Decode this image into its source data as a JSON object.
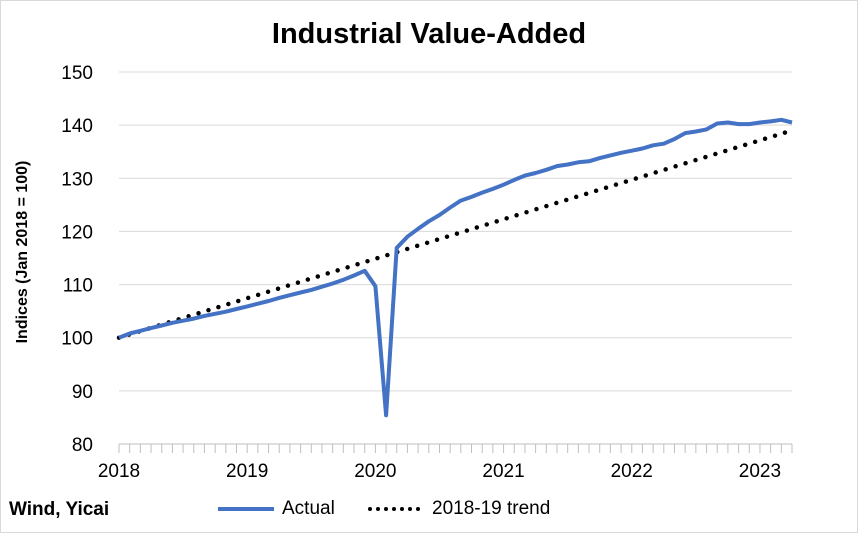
{
  "chart_data": {
    "type": "line",
    "title": "Industrial Value-Added",
    "ylabel": "Indices (Jan 2018 = 100)",
    "xlabel": "",
    "ylim": [
      80,
      150
    ],
    "yticks": [
      "80",
      "90",
      "100",
      "110",
      "120",
      "130",
      "140",
      "150"
    ],
    "xticks": [
      "2018",
      "2019",
      "2020",
      "2021",
      "2022",
      "2023"
    ],
    "grid": "horizontal",
    "legend_position": "bottom",
    "source": "Wind, Yicai",
    "x_start": "2018-01",
    "x_end": "2023-04",
    "series": [
      {
        "name": "Actual",
        "style": "solid",
        "color": "#4472c4",
        "values": [
          100.0,
          100.8,
          101.3,
          101.8,
          102.3,
          102.8,
          103.2,
          103.6,
          104.1,
          104.5,
          104.9,
          105.4,
          105.9,
          106.4,
          106.9,
          107.5,
          108.0,
          108.5,
          109.0,
          109.6,
          110.2,
          110.9,
          111.7,
          112.6,
          109.7,
          85.4,
          116.9,
          119.0,
          120.5,
          121.9,
          123.1,
          124.5,
          125.8,
          126.5,
          127.3,
          128.0,
          128.8,
          129.7,
          130.5,
          131.0,
          131.6,
          132.3,
          132.6,
          133.0,
          133.2,
          133.8,
          134.3,
          134.8,
          135.2,
          135.6,
          136.2,
          136.5,
          137.4,
          138.5,
          138.8,
          139.2,
          140.3,
          140.5,
          140.2,
          140.2,
          140.5,
          140.7,
          141.0,
          140.5
        ]
      },
      {
        "name": "2018-19 trend",
        "style": "dotted",
        "color": "#000000",
        "start_value": 100.0,
        "end_value": 139.0
      }
    ]
  }
}
